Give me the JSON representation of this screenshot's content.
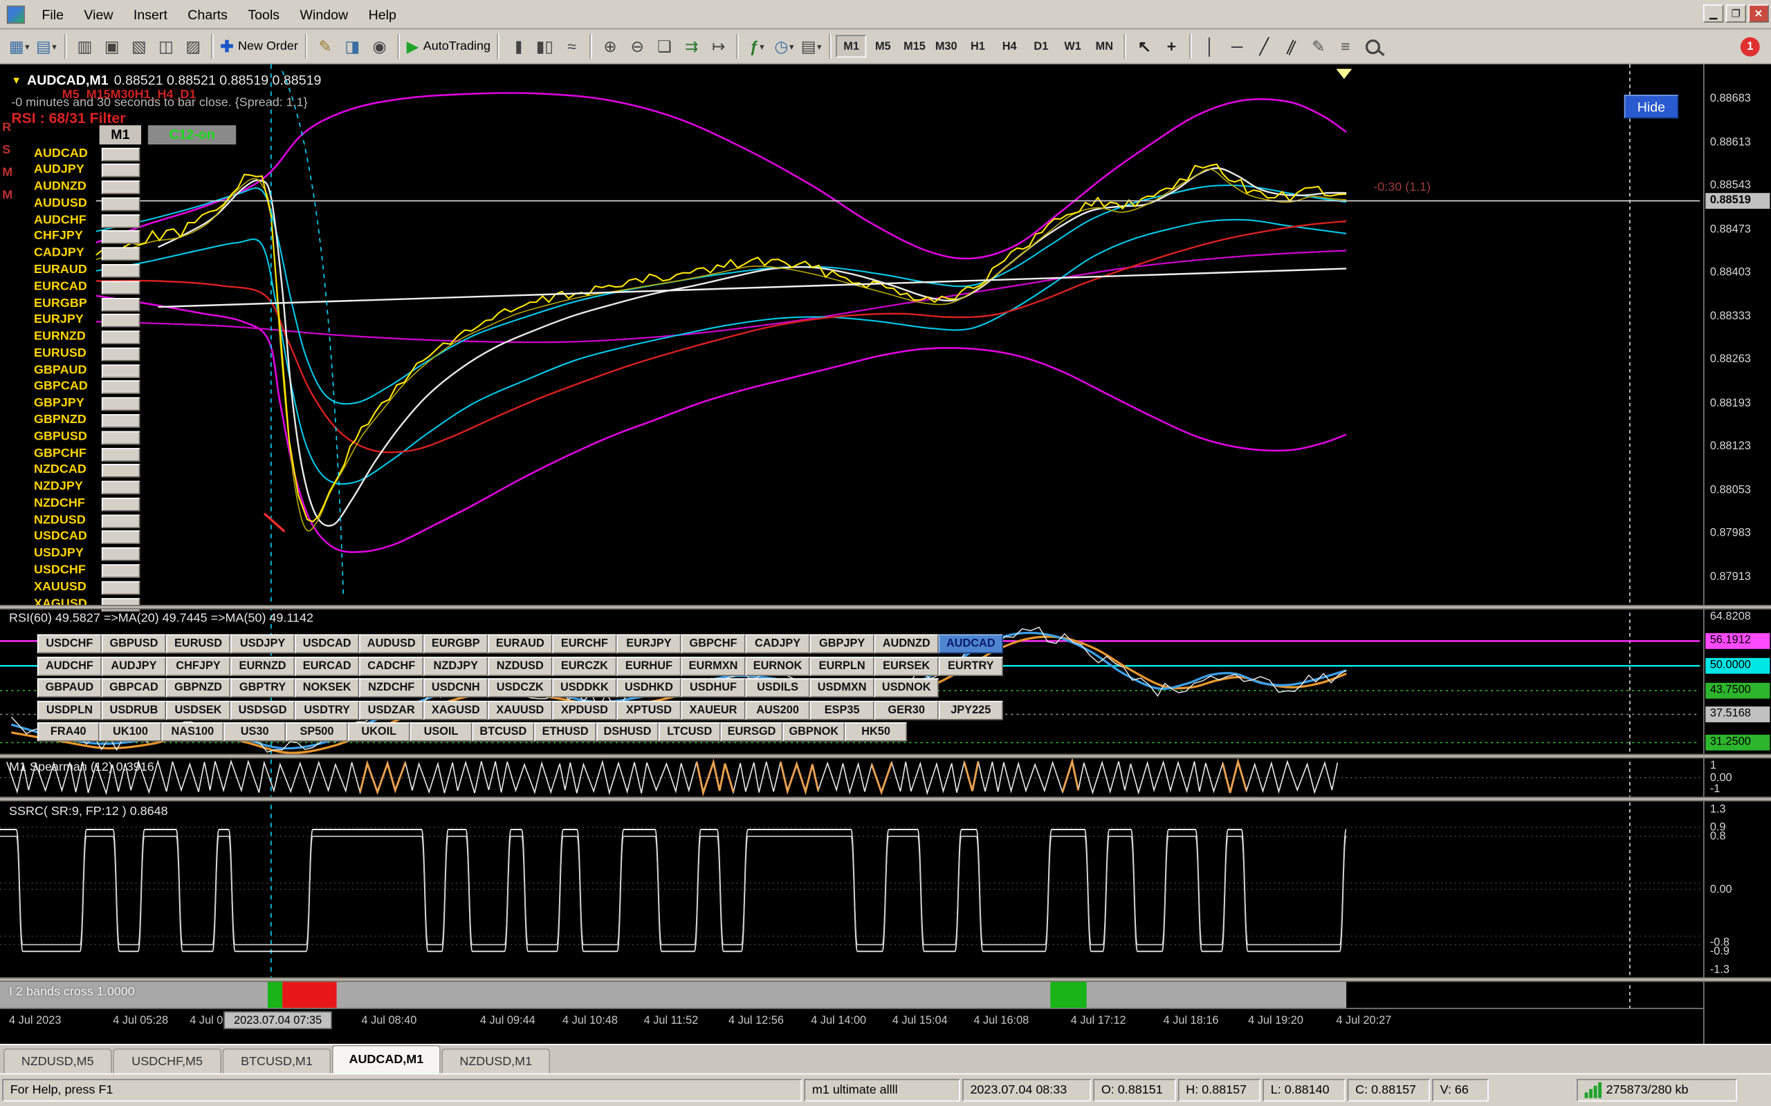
{
  "colors": {
    "chrome": "#d4d0c8",
    "chart_bg": "#000000",
    "pair_text": "#ffd400",
    "magenta": "#ff00ff",
    "cyan": "#00ffff",
    "hide_bg": "#2a5ad0",
    "active_symbol_bg": "#4d85d1"
  },
  "menu": {
    "items": [
      "File",
      "View",
      "Insert",
      "Charts",
      "Tools",
      "Window",
      "Help"
    ]
  },
  "toolbar": {
    "new_order_label": "New Order",
    "autotrading_label": "AutoTrading",
    "timeframes": [
      "M1",
      "M5",
      "M15",
      "M30",
      "H1",
      "H4",
      "D1",
      "W1",
      "MN"
    ],
    "active_timeframe": "M1",
    "badge_count": "1"
  },
  "chart": {
    "title_symbol": "AUDCAD,M1",
    "title_quotes": "0.88521 0.88521 0.88519 0.88519",
    "tf_status": "M5_M15M30H1_H4_D1",
    "countdown": "-0 minutes and 30 seconds to bar close. {Spread: 1.1}",
    "rsi_filter": "RSI : 68/31 Filter",
    "column_header": "M1",
    "c12_label": "C12-on",
    "hide_label": "Hide",
    "price_marker": "-0:30 (1.1)",
    "current_price": "0.88519",
    "left_marks": [
      "R",
      "S",
      "M",
      "M"
    ],
    "pairs": [
      "AUDCAD",
      "AUDJPY",
      "AUDNZD",
      "AUDUSD",
      "AUDCHF",
      "CHFJPY",
      "CADJPY",
      "EURAUD",
      "EURCAD",
      "EURGBP",
      "EURJPY",
      "EURNZD",
      "EURUSD",
      "GBPAUD",
      "GBPCAD",
      "GBPJPY",
      "GBPNZD",
      "GBPUSD",
      "GBPCHF",
      "NZDCAD",
      "NZDJPY",
      "NZDCHF",
      "NZDUSD",
      "USDCAD",
      "USDJPY",
      "USDCHF",
      "XAUUSD",
      "XAGUSD"
    ],
    "price_scale": [
      "0.88683",
      "0.88613",
      "0.88543",
      "0.88473",
      "0.88403",
      "0.88333",
      "0.88263",
      "0.88193",
      "0.88123",
      "0.88053",
      "0.87983",
      "0.87913"
    ]
  },
  "rsi_panel": {
    "label": "RSI(60) 49.5827  =>MA(20) 49.7445  =>MA(50) 49.1142",
    "scale_top": "64.8208",
    "levels": [
      {
        "value": "56.1912",
        "color": "#ff4bff"
      },
      {
        "value": "50.0000",
        "color": "#00e5e5"
      },
      {
        "value": "43.7500",
        "color": "#2db52d"
      },
      {
        "value": "37.5168",
        "color": "#c0c0c0"
      },
      {
        "value": "31.2500",
        "color": "#2db52d"
      }
    ],
    "active_symbol": "AUDCAD",
    "symbol_rows": [
      [
        "USDCHF",
        "GBPUSD",
        "EURUSD",
        "USDJPY",
        "USDCAD",
        "AUDUSD",
        "EURGBP",
        "EURAUD",
        "EURCHF",
        "EURJPY",
        "GBPCHF",
        "CADJPY",
        "GBPJPY",
        "AUDNZD",
        "AUDCAD"
      ],
      [
        "AUDCHF",
        "AUDJPY",
        "CHFJPY",
        "EURNZD",
        "EURCAD",
        "CADCHF",
        "NZDJPY",
        "NZDUSD",
        "EURCZK",
        "EURHUF",
        "EURMXN",
        "EURNOK",
        "EURPLN",
        "EURSEK",
        "EURTRY"
      ],
      [
        "GBPAUD",
        "GBPCAD",
        "GBPNZD",
        "GBPTRY",
        "NOKSEK",
        "NZDCHF",
        "USDCNH",
        "USDCZK",
        "USDDKK",
        "USDHKD",
        "USDHUF",
        "USDILS",
        "USDMXN",
        "USDNOK"
      ],
      [
        "USDPLN",
        "USDRUB",
        "USDSEK",
        "USDSGD",
        "USDTRY",
        "USDZAR",
        "XAGUSD",
        "XAUUSD",
        "XPDUSD",
        "XPTUSD",
        "XAUEUR",
        "AUS200",
        "ESP35",
        "GER30",
        "JPY225"
      ],
      [
        "FRA40",
        "UK100",
        "NAS100",
        "US30",
        "SP500",
        "UKOIL",
        "USOIL",
        "BTCUSD",
        "ETHUSD",
        "DSHUSD",
        "LTCUSD",
        "EURSGD",
        "GBPNOK",
        "HK50"
      ]
    ]
  },
  "spearman_panel": {
    "label": "M1 Spearman (12) 0.3916",
    "scale": [
      "1",
      "0.00",
      "-1"
    ]
  },
  "ssrc_panel": {
    "label": "SSRC( SR:9, FP:12 ) 0.8648",
    "scale": [
      "1.3",
      "0.9",
      "0.8",
      "0.00",
      "-0.8",
      "-0.9",
      "-1.3"
    ]
  },
  "bands_panel": {
    "label": "I 2 bands cross 1.0000"
  },
  "time_axis": {
    "labels": [
      "4 Jul 2023",
      "4 Jul 05:28",
      "4 Jul 06:32",
      "4 Jul 08:40",
      "4 Jul 09:44",
      "4 Jul 10:48",
      "4 Jul 11:52",
      "4 Jul 12:56",
      "4 Jul 14:00",
      "4 Jul 15:04",
      "4 Jul 16:08",
      "4 Jul 17:12",
      "4 Jul 18:16",
      "4 Jul 19:20",
      "4 Jul 20:27"
    ],
    "crosshair_time": "2023.07.04 07:35"
  },
  "tabs": {
    "items": [
      "NZDUSD,M5",
      "USDCHF,M5",
      "BTCUSD,M1",
      "AUDCAD,M1",
      "NZDUSD,M1"
    ],
    "active": "AUDCAD,M1"
  },
  "statusbar": {
    "help": "For Help, press F1",
    "expert": "m1 ultimate allll",
    "bar_time": "2023.07.04 08:33",
    "open": "O: 0.88151",
    "high": "H: 0.88157",
    "low": "L: 0.88140",
    "close": "C: 0.88157",
    "volume": "V: 66",
    "traffic": "275873/280 kb"
  }
}
